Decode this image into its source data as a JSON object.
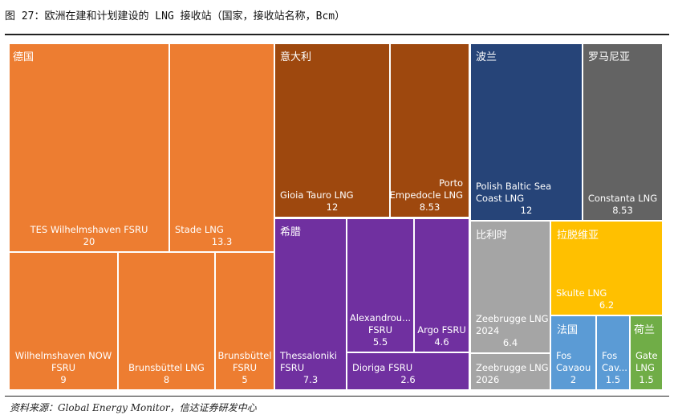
{
  "title": "图 27：欧洲在建和计划建设的 LNG 接收站（国家，接收站名称，Bcm）",
  "source": "资料来源：Global Energy Monitor，信达证券研发中心",
  "chart_data": {
    "type": "treemap",
    "unit": "Bcm",
    "groups": [
      {
        "name": "德国",
        "color": "#ED7D31",
        "items": [
          {
            "label": "TES Wilhelmshaven  FSRU",
            "value": 20
          },
          {
            "label": "Stade LNG",
            "value": 13.3
          },
          {
            "label": "Wilhelmshaven NOW FSRU",
            "value": 9
          },
          {
            "label": "Brunsbüttel LNG",
            "value": 8
          },
          {
            "label": "Brunsbüttel FSRU",
            "value": 5
          }
        ]
      },
      {
        "name": "意大利",
        "color": "#9E480E",
        "items": [
          {
            "label": "Gioia Tauro LNG",
            "value": 12
          },
          {
            "label": "Porto Empedocle LNG",
            "value": 8.53
          }
        ]
      },
      {
        "name": "希腊",
        "color": "#7030A0",
        "items": [
          {
            "label": "Thessaloniki FSRU",
            "value": 7.3
          },
          {
            "label": "Alexandrou... FSRU",
            "value": 5.5
          },
          {
            "label": "Argo  FSRU",
            "value": 4.6
          },
          {
            "label": "Dioriga FSRU",
            "value": 2.6
          }
        ]
      },
      {
        "name": "波兰",
        "color": "#264478",
        "items": [
          {
            "label": "Polish Baltic Sea Coast LNG",
            "value": 12
          }
        ]
      },
      {
        "name": "罗马尼亚",
        "color": "#636363",
        "items": [
          {
            "label": "Constanta LNG",
            "value": 8.53
          }
        ]
      },
      {
        "name": "比利时",
        "color": "#A5A5A5",
        "items": [
          {
            "label": "Zeebrugge LNG 2024",
            "value": 6.4
          },
          {
            "label": "Zeebrugge LNG 2026",
            "value": ""
          }
        ]
      },
      {
        "name": "拉脱维亚",
        "color": "#FFC000",
        "items": [
          {
            "label": "Skulte LNG",
            "value": 6.2
          }
        ]
      },
      {
        "name": "法国",
        "color": "#5B9BD5",
        "items": [
          {
            "label": "Fos Cavaou",
            "value": 2
          },
          {
            "label": "Fos Cav...",
            "value": 1.5
          }
        ]
      },
      {
        "name": "荷兰",
        "color": "#70AD47",
        "items": [
          {
            "label": "Gate LNG",
            "value": 1.5
          }
        ]
      }
    ]
  }
}
